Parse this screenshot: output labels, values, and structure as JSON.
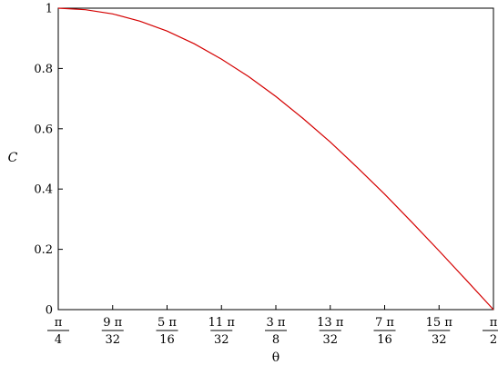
{
  "chart_data": {
    "type": "line",
    "title": "",
    "xlabel": "θ",
    "ylabel": "C",
    "xlim": [
      0.7853981634,
      1.5707963268
    ],
    "ylim": [
      0,
      1
    ],
    "grid": false,
    "legend": "none",
    "colors": {
      "series": "#d40000",
      "axes": "#000000",
      "background": "#ffffff"
    },
    "x_ticks": [
      {
        "value": 0.7853981634,
        "num": "π",
        "den": "4"
      },
      {
        "value": 0.8835729338,
        "num": "9 π",
        "den": "32"
      },
      {
        "value": 0.9817477042,
        "num": "5 π",
        "den": "16"
      },
      {
        "value": 1.0799224747,
        "num": "11 π",
        "den": "32"
      },
      {
        "value": 1.1780972451,
        "num": "3 π",
        "den": "8"
      },
      {
        "value": 1.2762720155,
        "num": "13 π",
        "den": "32"
      },
      {
        "value": 1.374446786,
        "num": "7 π",
        "den": "16"
      },
      {
        "value": 1.4726215564,
        "num": "15 π",
        "den": "32"
      },
      {
        "value": 1.5707963268,
        "num": "π",
        "den": "2"
      }
    ],
    "y_ticks": [
      {
        "value": 0,
        "label": "0"
      },
      {
        "value": 0.2,
        "label": "0.2"
      },
      {
        "value": 0.4,
        "label": "0.4"
      },
      {
        "value": 0.6,
        "label": "0.6"
      },
      {
        "value": 0.8,
        "label": "0.8"
      },
      {
        "value": 1,
        "label": "1"
      }
    ],
    "series": [
      {
        "x": [
          0.7854,
          0.8345,
          0.8836,
          0.9327,
          0.9817,
          1.0308,
          1.0799,
          1.129,
          1.1781,
          1.2272,
          1.2763,
          1.3254,
          1.3744,
          1.4235,
          1.4726,
          1.5217,
          1.5708
        ],
        "values": [
          1.0,
          0.995,
          0.981,
          0.957,
          0.924,
          0.882,
          0.831,
          0.773,
          0.707,
          0.634,
          0.556,
          0.471,
          0.383,
          0.29,
          0.195,
          0.098,
          0.0
        ]
      }
    ]
  }
}
